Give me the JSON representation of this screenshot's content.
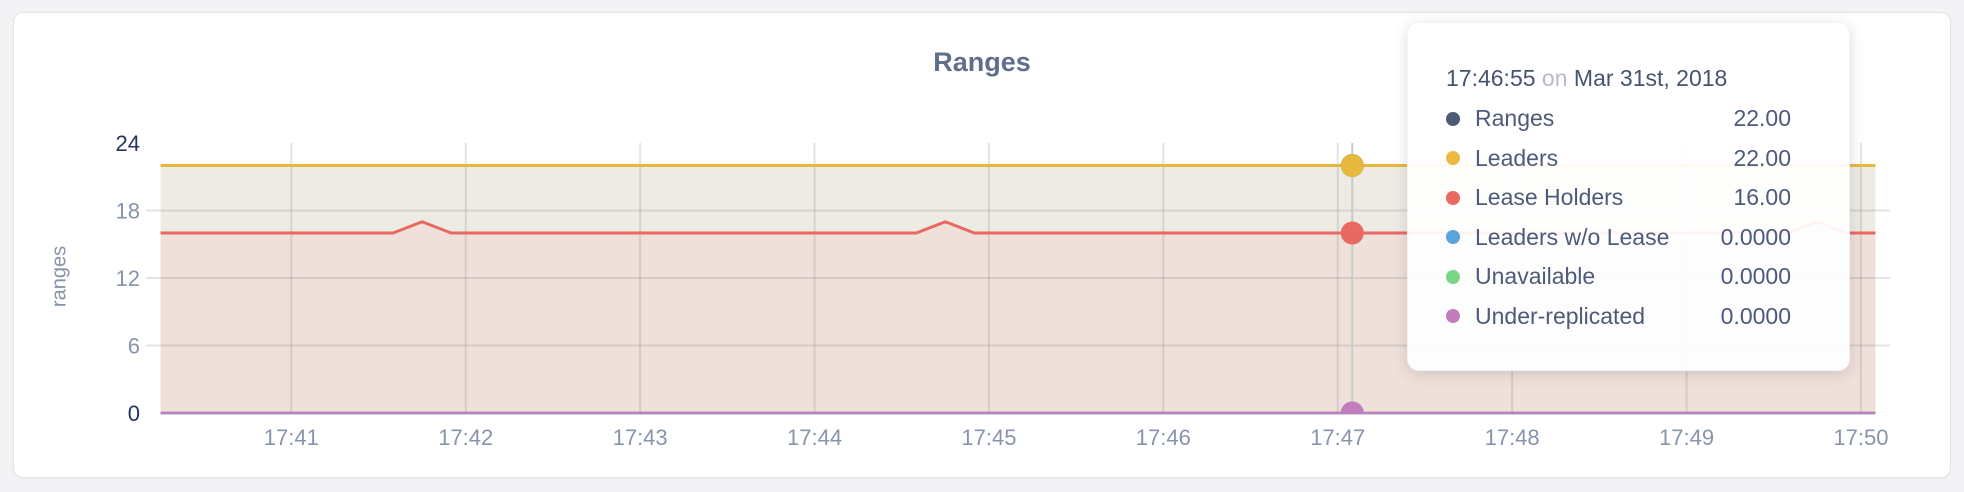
{
  "page": {
    "background": "#f3f3f5"
  },
  "chart_data": {
    "type": "area",
    "title": "Ranges",
    "ylabel": "ranges",
    "grid": true,
    "x_axis": {
      "start": "17:40:10",
      "end": "17:50:10",
      "tick_labels": [
        "17:41",
        "17:42",
        "17:43",
        "17:44",
        "17:45",
        "17:46",
        "17:47",
        "17:48",
        "17:49",
        "17:50"
      ]
    },
    "y_axis": {
      "ticks": [
        0,
        6,
        12,
        18,
        24
      ],
      "range": [
        0,
        24
      ]
    },
    "data_window": {
      "start": "17:40:15",
      "end": "17:50:05",
      "sample_interval_sec": 10
    },
    "series": [
      {
        "name": "Ranges",
        "color": "#4e5b76",
        "line_visible": false,
        "points": [
          [
            "17:40:15",
            22
          ],
          [
            "17:50:05",
            22
          ]
        ]
      },
      {
        "name": "Leaders",
        "color": "#e7b83d",
        "line_visible": true,
        "line_width": 3,
        "area_color": "#edebe3",
        "points": [
          [
            "17:40:15",
            22
          ],
          [
            "17:50:05",
            22
          ]
        ]
      },
      {
        "name": "Lease Holders",
        "color": "#e8695f",
        "line_visible": true,
        "line_width": 3,
        "area_color": "#f0e0da",
        "points": [
          [
            "17:40:15",
            16
          ],
          [
            "17:41:35",
            16
          ],
          [
            "17:41:45",
            17
          ],
          [
            "17:41:55",
            16
          ],
          [
            "17:44:35",
            16
          ],
          [
            "17:44:45",
            17
          ],
          [
            "17:44:55",
            16
          ],
          [
            "17:49:35",
            16
          ],
          [
            "17:49:45",
            17
          ],
          [
            "17:49:55",
            16
          ],
          [
            "17:50:05",
            16
          ]
        ]
      },
      {
        "name": "Leaders w/o Lease",
        "color": "#5ba3dc",
        "line_visible": true,
        "line_width": 2.4,
        "points": [
          [
            "17:40:15",
            0
          ],
          [
            "17:50:05",
            0
          ]
        ]
      },
      {
        "name": "Unavailable",
        "color": "#77d685",
        "line_visible": true,
        "line_width": 2.4,
        "points": [
          [
            "17:40:15",
            0
          ],
          [
            "17:50:05",
            0
          ]
        ]
      },
      {
        "name": "Under-replicated",
        "color": "#c27ebc",
        "line_visible": true,
        "line_width": 2.4,
        "points": [
          [
            "17:40:15",
            0
          ],
          [
            "17:50:05",
            0
          ]
        ]
      }
    ],
    "hover": {
      "guideline_time": "17:47:05",
      "dot_radius": 11.5
    }
  },
  "tooltip": {
    "time": "17:46:55",
    "on_word": "on",
    "date": "Mar 31st, 2018",
    "rows": [
      {
        "label": "Ranges",
        "value": "22.00",
        "color": "#4e5b76"
      },
      {
        "label": "Leaders",
        "value": "22.00",
        "color": "#ecba42"
      },
      {
        "label": "Lease Holders",
        "value": "16.00",
        "color": "#e8695f"
      },
      {
        "label": "Leaders w/o Lease",
        "value": "0.0000",
        "color": "#5ba3dc"
      },
      {
        "label": "Unavailable",
        "value": "0.0000",
        "color": "#77d685"
      },
      {
        "label": "Under-replicated",
        "value": "0.0000",
        "color": "#c27ebc"
      }
    ]
  }
}
